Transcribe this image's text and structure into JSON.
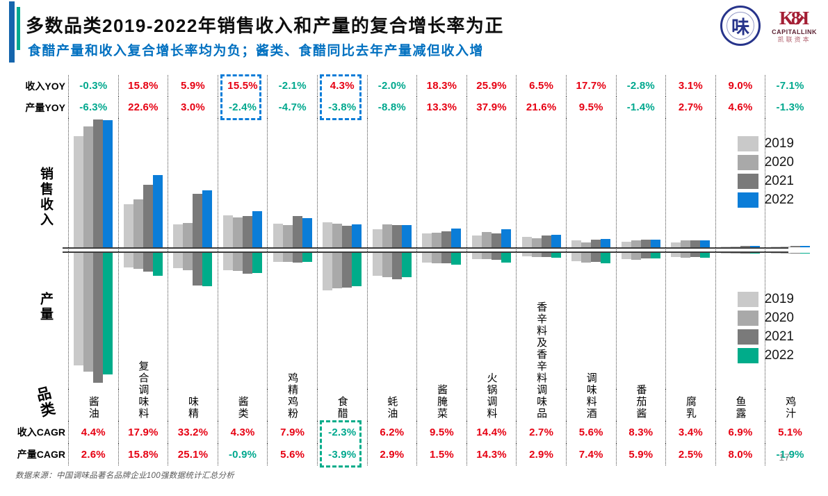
{
  "header": {
    "title": "多数品类2019-2022年销售收入和产量的复合增长率为正",
    "subtitle": "食醋产量和收入复合增长率均为负；酱类、食醋同比去年产量减但收入增",
    "logo_association_char": "味",
    "logo_capitallink_name": "CAPITALLINK",
    "logo_capitallink_cn": "凯联资本"
  },
  "labels": {
    "income_yoy": "收入YOY",
    "output_yoy": "产量YOY",
    "revenue_axis": "销售收入",
    "output_axis": "产量",
    "category": "品类",
    "income_cagr": "收入CAGR",
    "output_cagr": "产量CAGR"
  },
  "colors": {
    "positive_text": "#e60012",
    "negative_text": "#00a88e",
    "subtitle_blue": "#0070c0",
    "accent_blue": "#1565ad",
    "accent_teal": "#00a98f",
    "y2019": "#c9c9c9",
    "y2020": "#a9a9a9",
    "y2021": "#7a7a7a",
    "y2022_revenue": "#0b7dd8",
    "y2022_output": "#00ac8a"
  },
  "legend_revenue": [
    "2019",
    "2020",
    "2021",
    "2022"
  ],
  "legend_output": [
    "2019",
    "2020",
    "2021",
    "2022"
  ],
  "chart_data": {
    "type": "bar",
    "title": "多数品类2019-2022年销售收入和产量的复合增长率为正",
    "subtitle": "食醋产量和收入复合增长率均为负；酱类、食醋同比去年产量减但收入增",
    "layout": "mirrored bar chart: 销售收入 (sales revenue) above zero axis, 产量 (production) below; 4 yearly bars per category",
    "value_unit": "relative index, estimated from bar heights in chart pixels",
    "legend_position": "right, inside plot (revenue legend upper, output legend lower)",
    "categories": [
      "酱油",
      "复合调味料",
      "味精",
      "酱类",
      "鸡精鸡粉",
      "食醋",
      "蚝油",
      "酱腌菜",
      "火锅调料",
      "香辛料及香辛料调味品",
      "调味料酒",
      "番茄酱",
      "腐乳",
      "鱼露",
      "鸡汁"
    ],
    "income_yoy": [
      "-0.3%",
      "15.8%",
      "5.9%",
      "15.5%",
      "-2.1%",
      "4.3%",
      "-2.0%",
      "18.3%",
      "25.9%",
      "6.5%",
      "17.7%",
      "-2.8%",
      "3.1%",
      "9.0%",
      "-7.1%"
    ],
    "output_yoy": [
      "-6.3%",
      "22.6%",
      "3.0%",
      "-2.4%",
      "-4.7%",
      "-3.8%",
      "-8.8%",
      "13.3%",
      "37.9%",
      "21.6%",
      "9.5%",
      "-1.4%",
      "2.7%",
      "4.6%",
      "-1.3%"
    ],
    "income_cagr": [
      "4.4%",
      "17.9%",
      "33.2%",
      "4.3%",
      "7.9%",
      "-2.3%",
      "6.2%",
      "9.5%",
      "14.4%",
      "2.7%",
      "5.6%",
      "8.3%",
      "3.4%",
      "6.9%",
      "5.1%"
    ],
    "output_cagr": [
      "2.6%",
      "15.8%",
      "25.1%",
      "-0.9%",
      "5.6%",
      "-3.9%",
      "2.9%",
      "1.5%",
      "14.3%",
      "2.9%",
      "7.4%",
      "5.9%",
      "2.5%",
      "8.0%",
      "-1.9%"
    ],
    "revenue_series": [
      {
        "name": "2019",
        "values": [
          160,
          62,
          33,
          46,
          34,
          36,
          26,
          20,
          17,
          15,
          10,
          8,
          7,
          1,
          1
        ]
      },
      {
        "name": "2020",
        "values": [
          174,
          69,
          35,
          43,
          32,
          34,
          33,
          21,
          22,
          13,
          7,
          10,
          10,
          1,
          1
        ]
      },
      {
        "name": "2021",
        "values": [
          184,
          90,
          77,
          45,
          45,
          31,
          32,
          23,
          20,
          17,
          11,
          11,
          10,
          2,
          2
        ]
      },
      {
        "name": "2022",
        "values": [
          183,
          104,
          82,
          52,
          42,
          33,
          32,
          27,
          26,
          18,
          12,
          11,
          10,
          2,
          2
        ]
      }
    ],
    "output_series": [
      {
        "name": "2019",
        "values": [
          162,
          21,
          22,
          25,
          13,
          54,
          33,
          14,
          9,
          5,
          12,
          9,
          6,
          1,
          1
        ]
      },
      {
        "name": "2020",
        "values": [
          171,
          23,
          25,
          26,
          13,
          51,
          35,
          15,
          9,
          6,
          14,
          10,
          7,
          1,
          1
        ]
      },
      {
        "name": "2021",
        "values": [
          187,
          27,
          47,
          30,
          14,
          50,
          38,
          15,
          10,
          6,
          13,
          8,
          6,
          1,
          1
        ]
      },
      {
        "name": "2022",
        "values": [
          175,
          33,
          48,
          29,
          13,
          48,
          35,
          17,
          14,
          7,
          15,
          8,
          7,
          1,
          1
        ]
      }
    ],
    "yoy_highlight_categories": [
      "酱类",
      "食醋"
    ],
    "cagr_highlight_categories": [
      "食醋"
    ]
  },
  "footer": {
    "source": "数据来源：中国调味品著名品牌企业100强数据统计汇总分析",
    "page": "17"
  }
}
